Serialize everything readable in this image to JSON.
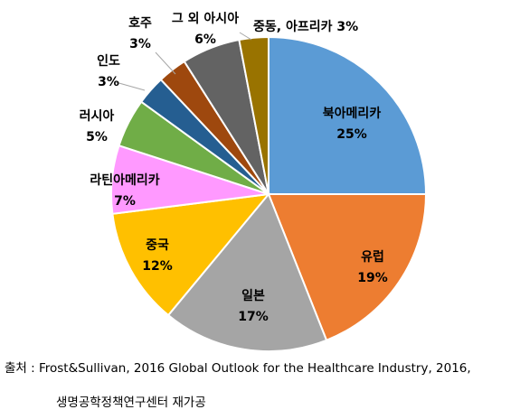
{
  "chart_data": {
    "type": "pie",
    "title": "",
    "legend": "none",
    "slices": [
      {
        "label": "북아메리카",
        "value": 25,
        "value_label": "25%",
        "color": "#5B9BD5"
      },
      {
        "label": "유럽",
        "value": 19,
        "value_label": "19%",
        "color": "#ED7D31"
      },
      {
        "label": "일본",
        "value": 17,
        "value_label": "17%",
        "color": "#A5A5A5"
      },
      {
        "label": "중국",
        "value": 12,
        "value_label": "12%",
        "color": "#FFC000"
      },
      {
        "label": "라틴아메리카",
        "value": 7,
        "value_label": "7%",
        "color": "#FF99FF"
      },
      {
        "label": "러시아",
        "value": 5,
        "value_label": "5%",
        "color": "#70AD47"
      },
      {
        "label": "인도",
        "value": 3,
        "value_label": "3%",
        "color": "#255E91"
      },
      {
        "label": "호주",
        "value": 3,
        "value_label": "3%",
        "color": "#9E480E"
      },
      {
        "label": "그 외 아시아",
        "value": 6,
        "value_label": "6%",
        "color": "#636363"
      },
      {
        "label": "중동, 아프리카",
        "value": 3,
        "value_label": "3%",
        "color": "#997300"
      }
    ]
  },
  "source": {
    "line1": "출처 : Frost&Sullivan, 2016 Global Outlook for the Healthcare Industry, 2016,",
    "line2": "생명공학정책연구센터 재가공"
  }
}
